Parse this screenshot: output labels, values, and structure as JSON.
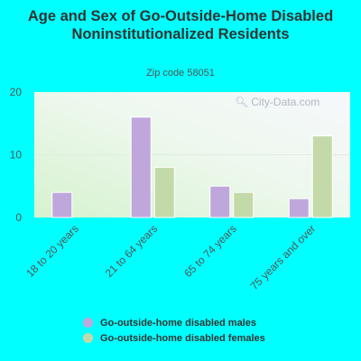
{
  "chart_data": {
    "type": "bar",
    "title": "Age and Sex of Go-Outside-Home Disabled Noninstitutionalized Residents",
    "subtitle": "Zip code 58051",
    "categories": [
      "18 to 20 years",
      "21 to 64 years",
      "65 to 74 years",
      "75 years and over"
    ],
    "series": [
      {
        "name": "Go-outside-home disabled males",
        "values": [
          4,
          16,
          5,
          3
        ],
        "color": "#bfa7dc"
      },
      {
        "name": "Go-outside-home disabled females",
        "values": [
          0,
          8,
          4,
          13
        ],
        "color": "#c4d9a8"
      }
    ],
    "ylim": [
      0,
      20
    ],
    "yticks": [
      0,
      10,
      20
    ],
    "grid": true,
    "legend": "bottom"
  },
  "watermark": {
    "text": "City-Data.com",
    "icon": "magnifier-icon"
  }
}
